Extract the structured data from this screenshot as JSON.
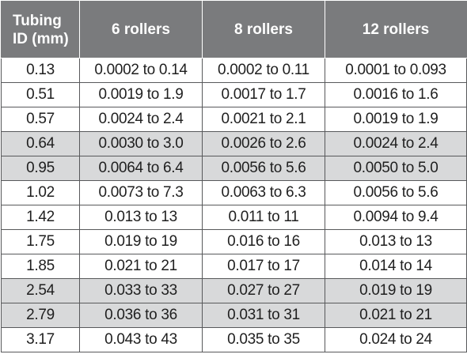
{
  "table": {
    "headers": [
      "Tubing\nID (mm)",
      "6 rollers",
      "8 rollers",
      "12 rollers"
    ],
    "rows": [
      [
        "0.13",
        "0.0002 to 0.14",
        "0.0002 to 0.11",
        "0.0001 to 0.093"
      ],
      [
        "0.51",
        "0.0019 to 1.9",
        "0.0017 to 1.7",
        "0.0016 to 1.6"
      ],
      [
        "0.57",
        "0.0024 to 2.4",
        "0.0021 to 2.1",
        "0.0019 to 1.9"
      ],
      [
        "0.64",
        "0.0030 to 3.0",
        "0.0026 to 2.6",
        "0.0024 to 2.4"
      ],
      [
        "0.95",
        "0.0064 to 6.4",
        "0.0056 to 5.6",
        "0.0050 to 5.0"
      ],
      [
        "1.02",
        "0.0073 to 7.3",
        "0.0063 to 6.3",
        "0.0056 to 5.6"
      ],
      [
        "1.42",
        "0.013 to 13",
        "0.011 to 11",
        "0.0094 to 9.4"
      ],
      [
        "1.75",
        "0.019 to 19",
        "0.016 to 16",
        "0.013 to 13"
      ],
      [
        "1.85",
        "0.021 to 21",
        "0.017 to 17",
        "0.014 to 14"
      ],
      [
        "2.54",
        "0.033 to 33",
        "0.027 to 27",
        "0.019 to 19"
      ],
      [
        "2.79",
        "0.036 to 36",
        "0.031 to 31",
        "0.021 to 21"
      ],
      [
        "3.17",
        "0.043 to 43",
        "0.035 to 35",
        "0.024 to 24"
      ]
    ]
  },
  "colors": {
    "header_bg": "#7a7b7d",
    "header_text": "#ffffff",
    "row_alt_bg": "#d8d9da",
    "border": "#58595b"
  }
}
